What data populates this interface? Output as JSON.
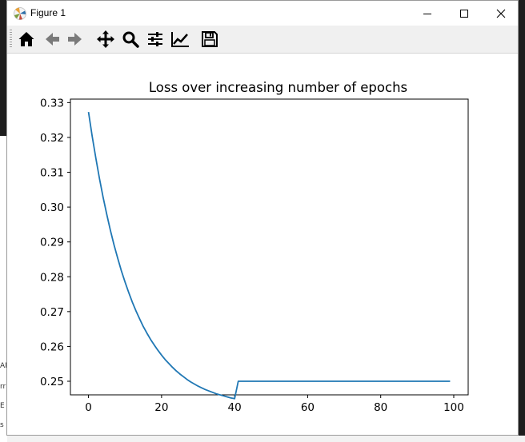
{
  "window": {
    "title": "Figure 1",
    "controls": [
      "minimize",
      "maximize",
      "close"
    ]
  },
  "toolbar": {
    "buttons": [
      {
        "name": "home-button",
        "icon": "home-icon"
      },
      {
        "name": "back-button",
        "icon": "arrow-left-icon"
      },
      {
        "name": "forward-button",
        "icon": "arrow-right-icon"
      },
      {
        "name": "pan-button",
        "icon": "move-icon"
      },
      {
        "name": "zoom-button",
        "icon": "magnifier-icon"
      },
      {
        "name": "subplots-button",
        "icon": "sliders-icon"
      },
      {
        "name": "axes-edit-button",
        "icon": "line-chart-icon"
      },
      {
        "name": "save-button",
        "icon": "floppy-disk-icon"
      }
    ]
  },
  "background_fragments": [
    "AN",
    "rr",
    "E",
    "s"
  ],
  "chart_data": {
    "type": "line",
    "title": "Loss over increasing number of epochs",
    "xlabel": "",
    "ylabel": "",
    "xlim": [
      -4.95,
      103.95
    ],
    "ylim": [
      0.2461,
      0.331
    ],
    "xticks": [
      0,
      20,
      40,
      60,
      80,
      100
    ],
    "yticks": [
      0.25,
      0.26,
      0.27,
      0.28,
      0.29,
      0.3,
      0.31,
      0.32,
      0.33
    ],
    "ytick_labels": [
      "0.25",
      "0.26",
      "0.27",
      "0.28",
      "0.29",
      "0.30",
      "0.31",
      "0.32",
      "0.33"
    ],
    "grid": false,
    "line_color": "#1f77b4",
    "series": [
      {
        "x": [
          0,
          1,
          2,
          3,
          4,
          5,
          6,
          7,
          8,
          9,
          10,
          11,
          12,
          13,
          14,
          15,
          16,
          17,
          18,
          19,
          20,
          21,
          22,
          23,
          24,
          25,
          26,
          27,
          28,
          29,
          30,
          31,
          32,
          33,
          34,
          35,
          36,
          37,
          38,
          39,
          40,
          41,
          42,
          43,
          44,
          45,
          46,
          47,
          48,
          49,
          50,
          51,
          52,
          53,
          54,
          55,
          56,
          57,
          58,
          59,
          60,
          61,
          62,
          63,
          64,
          65,
          66,
          67,
          68,
          69,
          70,
          71,
          72,
          73,
          74,
          75,
          76,
          77,
          78,
          79,
          80,
          81,
          82,
          83,
          84,
          85,
          86,
          87,
          88,
          89,
          90,
          91,
          92,
          93,
          94,
          95,
          96,
          97,
          98,
          99
        ],
        "y": [
          0.3273,
          0.3204,
          0.3141,
          0.3082,
          0.3028,
          0.2979,
          0.2933,
          0.2891,
          0.2853,
          0.2817,
          0.2785,
          0.2755,
          0.2727,
          0.2702,
          0.2679,
          0.2657,
          0.2638,
          0.262,
          0.2604,
          0.2589,
          0.2575,
          0.2562,
          0.2551,
          0.254,
          0.253,
          0.2521,
          0.2513,
          0.2505,
          0.2498,
          0.2492,
          0.2486,
          0.2481,
          0.2476,
          0.2472,
          0.2468,
          0.2464,
          0.2461,
          0.2458,
          0.2455,
          0.2452,
          0.245,
          0.25,
          0.25,
          0.25,
          0.25,
          0.25,
          0.25,
          0.25,
          0.25,
          0.25,
          0.25,
          0.25,
          0.25,
          0.25,
          0.25,
          0.25,
          0.25,
          0.25,
          0.25,
          0.25,
          0.25,
          0.25,
          0.25,
          0.25,
          0.25,
          0.25,
          0.25,
          0.25,
          0.25,
          0.25,
          0.25,
          0.25,
          0.25,
          0.25,
          0.25,
          0.25,
          0.25,
          0.25,
          0.25,
          0.25,
          0.25,
          0.25,
          0.25,
          0.25,
          0.25,
          0.25,
          0.25,
          0.25,
          0.25,
          0.25,
          0.25,
          0.25,
          0.25,
          0.25,
          0.25,
          0.25,
          0.25,
          0.25,
          0.25,
          0.25
        ]
      }
    ]
  }
}
